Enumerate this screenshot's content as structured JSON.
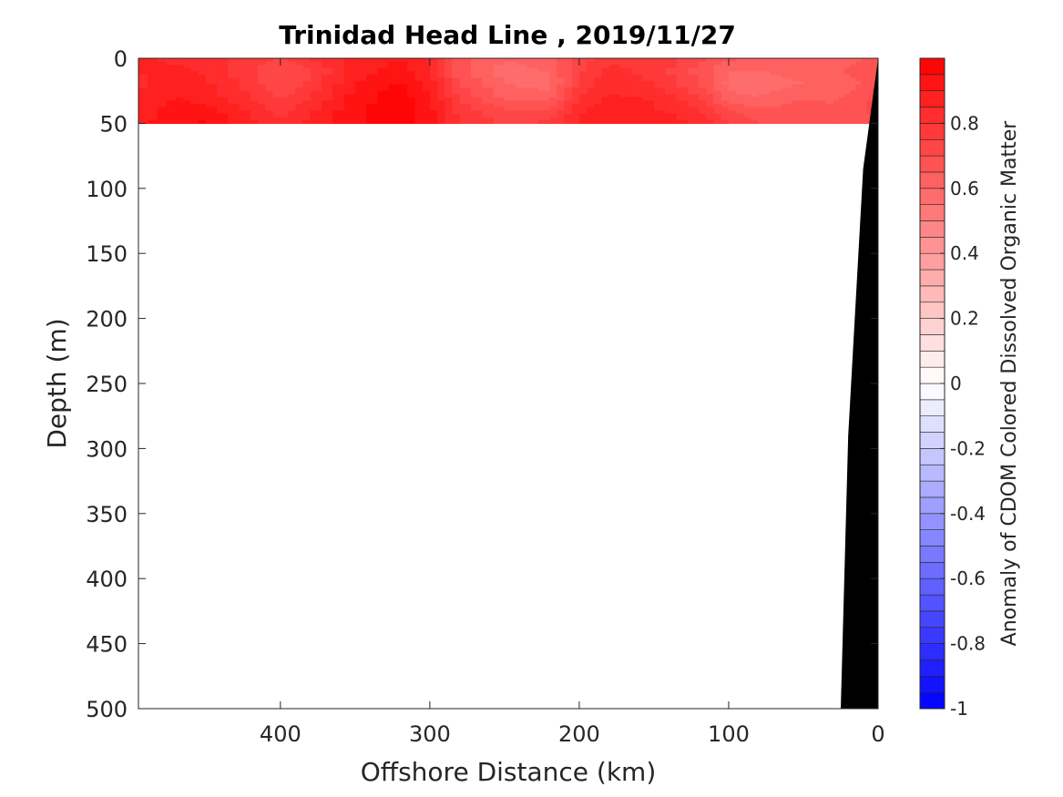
{
  "chart_data": {
    "type": "heatmap",
    "title": "Trinidad Head Line , 2019/11/27",
    "xlabel": "Offshore Distance (km)",
    "ylabel": "Depth (m)",
    "xlim": [
      495,
      0
    ],
    "ylim": [
      0,
      500
    ],
    "x_reversed": true,
    "y_reversed": true,
    "x_ticks": [
      400,
      300,
      200,
      100,
      0
    ],
    "y_ticks": [
      0,
      50,
      100,
      150,
      200,
      250,
      300,
      350,
      400,
      450,
      500
    ],
    "colorbar": {
      "label": "Anomaly of CDOM Colored Dissolved Organic Matter",
      "range": [
        -1,
        1
      ],
      "ticks": [
        -1,
        -0.8,
        -0.6,
        -0.4,
        -0.2,
        0,
        0.2,
        0.4,
        0.6,
        0.8
      ],
      "tick_labels": [
        "-1",
        "-0.8",
        "-0.6",
        "-0.4",
        "-0.2",
        "0",
        "0.2",
        "0.4",
        "0.6",
        "0.8"
      ],
      "levels": 40,
      "colormap": "blue-white-red"
    },
    "field": {
      "depths": [
        0,
        10,
        20,
        30,
        40,
        50
      ],
      "distances": [
        495,
        470,
        450,
        420,
        400,
        380,
        350,
        320,
        300,
        280,
        250,
        220,
        200,
        180,
        150,
        120,
        100,
        80,
        50,
        30,
        15,
        0
      ],
      "values": [
        [
          0.86,
          0.84,
          0.82,
          0.78,
          0.75,
          0.8,
          0.86,
          0.9,
          0.85,
          0.68,
          0.6,
          0.62,
          0.72,
          0.78,
          0.8,
          0.72,
          0.66,
          0.64,
          0.62,
          0.62,
          0.64,
          0.68
        ],
        [
          0.85,
          0.86,
          0.84,
          0.76,
          0.7,
          0.74,
          0.88,
          0.92,
          0.86,
          0.66,
          0.58,
          0.6,
          0.74,
          0.82,
          0.78,
          0.68,
          0.6,
          0.6,
          0.62,
          0.64,
          0.66,
          0.7
        ],
        [
          0.84,
          0.88,
          0.86,
          0.78,
          0.7,
          0.76,
          0.9,
          0.96,
          0.88,
          0.7,
          0.6,
          0.58,
          0.76,
          0.84,
          0.8,
          0.7,
          0.58,
          0.56,
          0.6,
          0.62,
          0.64,
          0.7
        ],
        [
          0.86,
          0.9,
          0.88,
          0.8,
          0.74,
          0.8,
          0.92,
          0.98,
          0.9,
          0.74,
          0.64,
          0.62,
          0.8,
          0.86,
          0.84,
          0.76,
          0.62,
          0.6,
          0.64,
          0.64,
          0.66,
          0.72
        ],
        [
          0.88,
          0.92,
          0.92,
          0.84,
          0.78,
          0.84,
          0.94,
          0.98,
          0.92,
          0.78,
          0.7,
          0.7,
          0.84,
          0.88,
          0.86,
          0.8,
          0.7,
          0.66,
          0.68,
          0.66,
          0.68,
          0.72
        ],
        [
          0.88,
          0.94,
          0.96,
          0.86,
          0.8,
          0.86,
          0.94,
          0.98,
          0.92,
          0.8,
          0.74,
          0.76,
          0.86,
          0.9,
          0.9,
          0.84,
          0.76,
          0.7,
          0.7,
          0.68,
          0.66,
          0.7
        ]
      ]
    },
    "data_bottom_depth": 50,
    "bathymetry": {
      "distance_km": [
        25,
        20,
        10,
        0
      ],
      "depth_m": [
        500,
        290,
        85,
        0
      ],
      "color": "#000000"
    }
  }
}
